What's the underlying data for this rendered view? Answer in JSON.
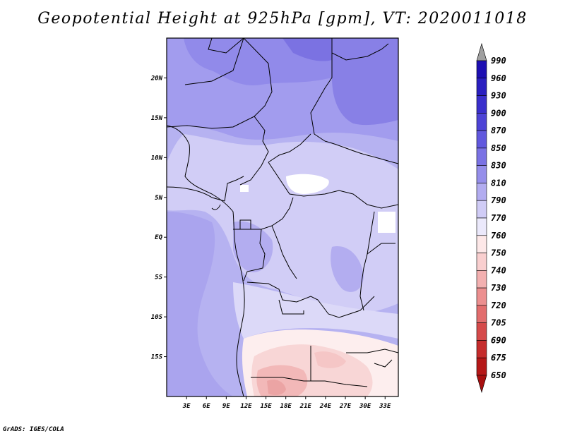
{
  "title": "Geopotential Height at 925hPa [gpm], VT: 2020011018",
  "footer": "GrADS: IGES/COLA",
  "map": {
    "lon_range": [
      0,
      35
    ],
    "lat_range": [
      -20,
      25
    ],
    "x_ticks": [
      "3E",
      "6E",
      "9E",
      "12E",
      "15E",
      "18E",
      "21E",
      "24E",
      "27E",
      "30E",
      "33E"
    ],
    "x_tick_values": [
      3,
      6,
      9,
      12,
      15,
      18,
      21,
      24,
      27,
      30,
      33
    ],
    "y_ticks": [
      "20N",
      "15N",
      "10N",
      "5N",
      "EQ",
      "5S",
      "10S",
      "15S"
    ],
    "y_tick_values": [
      20,
      15,
      10,
      5,
      0,
      -5,
      -10,
      -15
    ]
  },
  "colorbar": {
    "levels": [
      "990",
      "960",
      "930",
      "900",
      "870",
      "850",
      "830",
      "810",
      "790",
      "770",
      "760",
      "750",
      "740",
      "730",
      "720",
      "705",
      "690",
      "675",
      "650"
    ],
    "colors": [
      "#ffffff",
      "#1d0fb2",
      "#2a1fc0",
      "#3a2fcc",
      "#4d43d6",
      "#6158de",
      "#7a72e4",
      "#958eea",
      "#b2acf0",
      "#d0ccf6",
      "#ebe9fb",
      "#fde8e8",
      "#f9cfcf",
      "#f3b0b0",
      "#ec8f8f",
      "#e26d6d",
      "#d54a4a",
      "#c52c2c",
      "#b51818",
      "#a81010"
    ]
  }
}
